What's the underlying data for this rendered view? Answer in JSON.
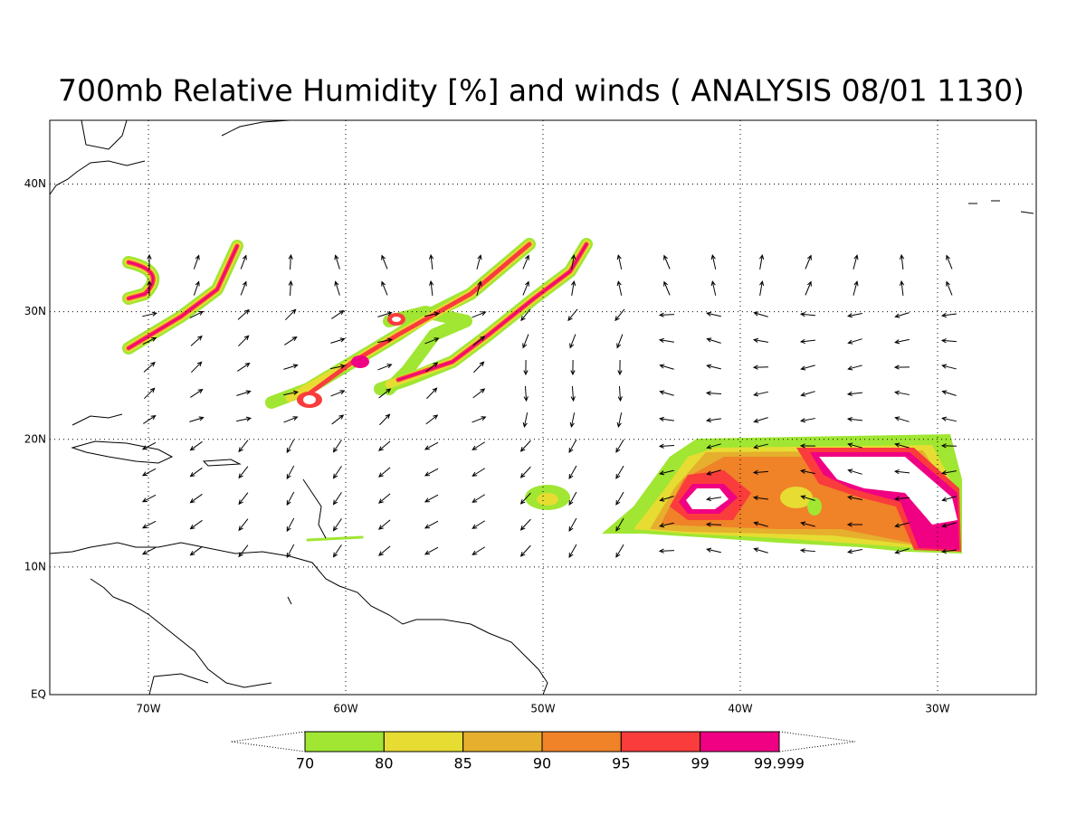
{
  "map": {
    "title": "700mb Relative Humidity [%] and winds ( ANALYSIS 08/01 1130)",
    "lon_range": [
      -75,
      -25
    ],
    "lat_range": [
      0,
      45
    ],
    "lon_ticks": [
      {
        "value": -70,
        "label": "70W"
      },
      {
        "value": -60,
        "label": "60W"
      },
      {
        "value": -50,
        "label": "50W"
      },
      {
        "value": -40,
        "label": "40W"
      },
      {
        "value": -30,
        "label": "30W"
      }
    ],
    "lat_ticks": [
      {
        "value": 0,
        "label": "EQ"
      },
      {
        "value": 10,
        "label": "10N"
      },
      {
        "value": 20,
        "label": "20N"
      },
      {
        "value": 30,
        "label": "30N"
      },
      {
        "value": 40,
        "label": "40N"
      }
    ],
    "colorbar": {
      "levels": [
        70,
        80,
        85,
        90,
        95,
        99,
        99.999
      ],
      "colors": [
        "#a0e632",
        "#e6dc32",
        "#e6af2d",
        "#f08228",
        "#fa3c3c",
        "#f00082"
      ]
    }
  }
}
